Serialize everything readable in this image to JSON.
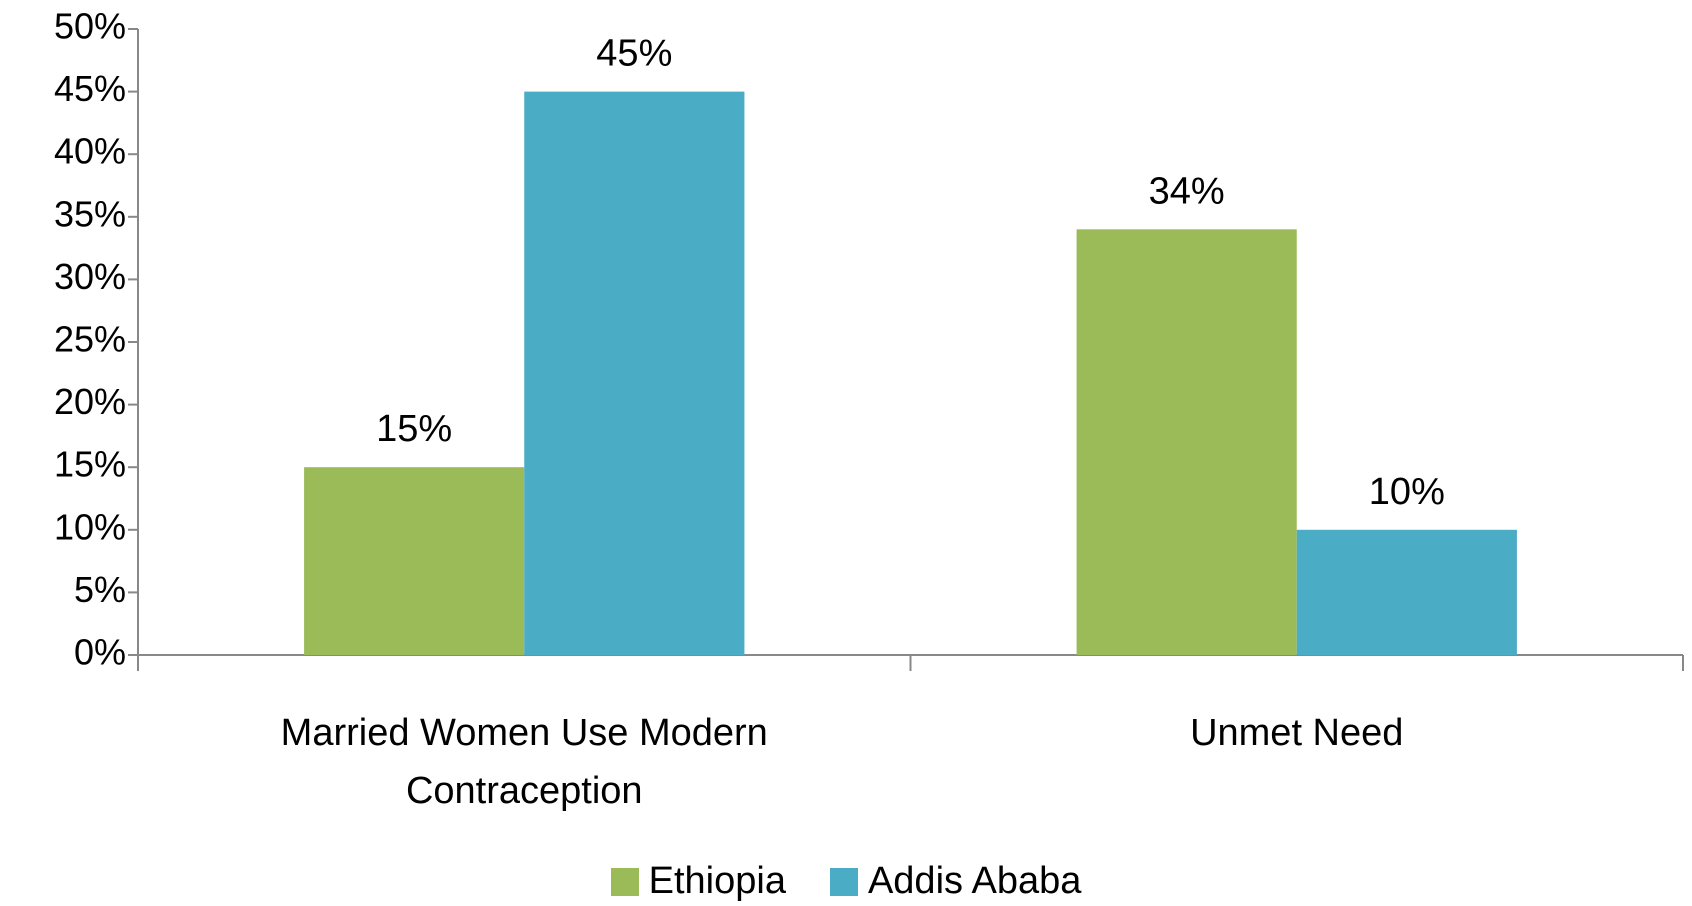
{
  "chart_data": {
    "type": "bar",
    "categories": [
      "Married Women Use Modern Contraception",
      "Unmet Need"
    ],
    "series": [
      {
        "name": "Ethiopia",
        "color": "#9bbb59",
        "values": [
          15,
          34
        ],
        "value_labels": [
          "15%",
          "34%"
        ]
      },
      {
        "name": "Addis Ababa",
        "color": "#4bacc6",
        "values": [
          45,
          10
        ],
        "value_labels": [
          "45%",
          "10%"
        ]
      }
    ],
    "ylim": [
      0,
      50
    ],
    "yticks": [
      {
        "value": 0,
        "label": "0%"
      },
      {
        "value": 5,
        "label": "5%"
      },
      {
        "value": 10,
        "label": "10%"
      },
      {
        "value": 15,
        "label": "15%"
      },
      {
        "value": 20,
        "label": "20%"
      },
      {
        "value": 25,
        "label": "25%"
      },
      {
        "value": 30,
        "label": "30%"
      },
      {
        "value": 35,
        "label": "35%"
      },
      {
        "value": 40,
        "label": "40%"
      },
      {
        "value": 45,
        "label": "45%"
      },
      {
        "value": 50,
        "label": "50%"
      }
    ],
    "grid": false,
    "legend": "bottom"
  }
}
